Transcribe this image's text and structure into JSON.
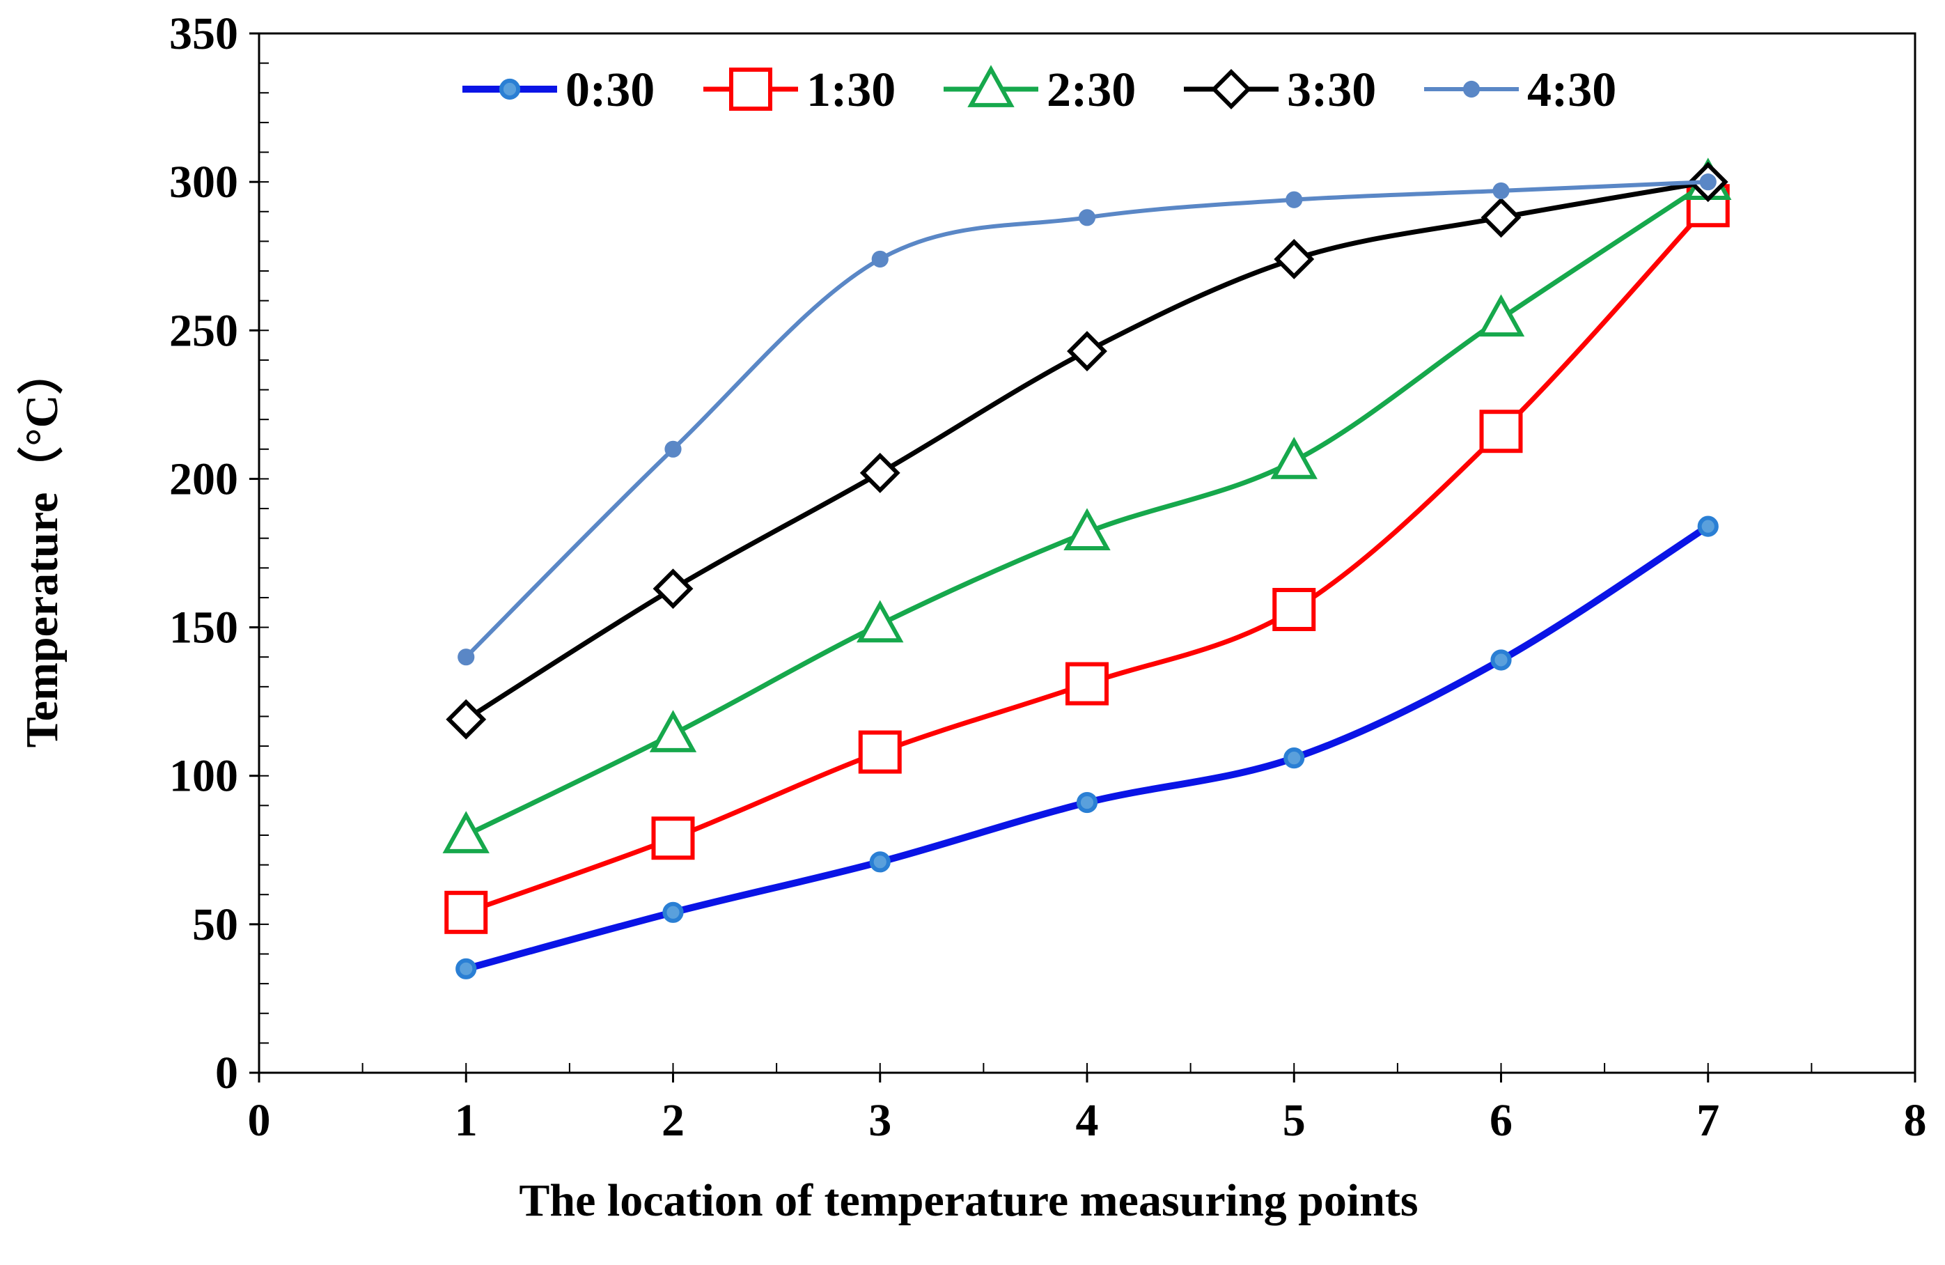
{
  "chart_data": {
    "type": "line",
    "title": "",
    "xlabel": "The location of temperature measuring points",
    "ylabel": "Temperature（°C）",
    "xlim": [
      0,
      8
    ],
    "ylim": [
      0,
      350
    ],
    "x_ticks": [
      0,
      1,
      2,
      3,
      4,
      5,
      6,
      7,
      8
    ],
    "y_ticks": [
      0,
      50,
      100,
      150,
      200,
      250,
      300,
      350
    ],
    "x_minor_step": 0.5,
    "y_minor_step": 10,
    "grid": false,
    "legend_position": "top",
    "x": [
      1,
      2,
      3,
      4,
      5,
      6,
      7
    ],
    "series": [
      {
        "name": "0:30",
        "color": "#0a14e6",
        "marker": "circle",
        "marker_color": "#2a7fd4",
        "values": [
          35,
          54,
          71,
          91,
          106,
          139,
          184
        ]
      },
      {
        "name": "1:30",
        "color": "#ff0000",
        "marker": "square",
        "marker_color": "#ff0000",
        "values": [
          54,
          79,
          108,
          131,
          156,
          216,
          292
        ]
      },
      {
        "name": "2:30",
        "color": "#16a84c",
        "marker": "triangle",
        "marker_color": "#16a84c",
        "values": [
          80,
          114,
          151,
          182,
          206,
          254,
          300
        ]
      },
      {
        "name": "3:30",
        "color": "#000000",
        "marker": "diamond",
        "marker_color": "#000000",
        "values": [
          119,
          163,
          202,
          243,
          274,
          288,
          300
        ]
      },
      {
        "name": "4:30",
        "color": "#5a87c6",
        "marker": "dot",
        "marker_color": "#5a87c6",
        "values": [
          140,
          210,
          274,
          288,
          294,
          297,
          300
        ]
      }
    ]
  }
}
